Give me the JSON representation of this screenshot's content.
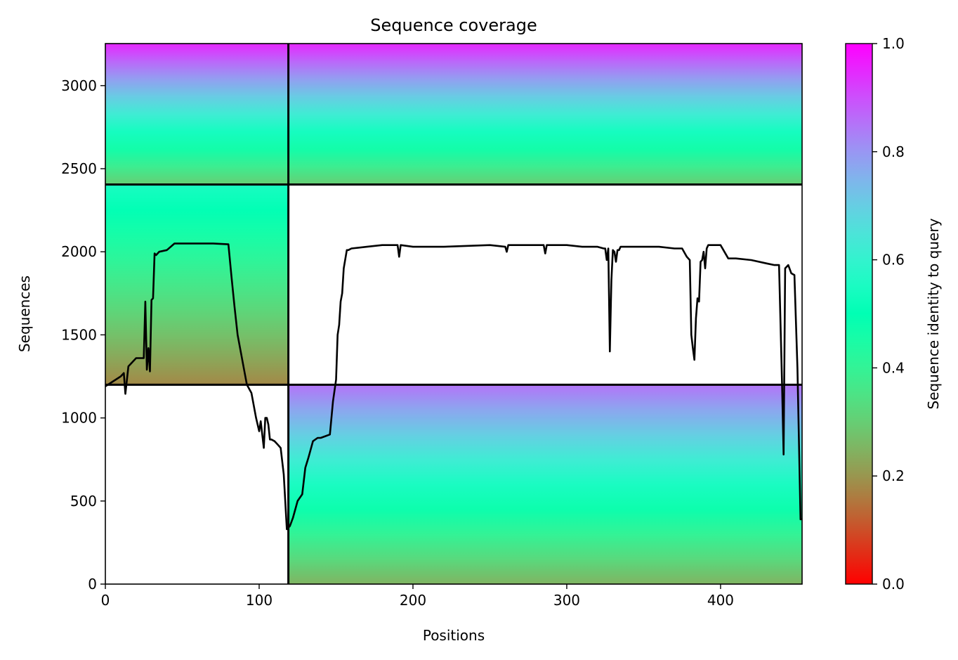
{
  "chart_data": {
    "type": "heatmap",
    "title": "Sequence coverage",
    "xlabel": "Positions",
    "ylabel": "Sequences",
    "xlim": [
      0,
      453
    ],
    "ylim": [
      0,
      3253
    ],
    "xticks": [
      0,
      100,
      200,
      300,
      400
    ],
    "yticks": [
      0,
      500,
      1000,
      1500,
      2000,
      2500,
      3000
    ],
    "colorbar": {
      "label": "Sequence identity to query",
      "range": [
        0,
        1
      ],
      "ticks": [
        0.0,
        0.2,
        0.4,
        0.6,
        0.8,
        1.0
      ],
      "colormap": "rainbow_r"
    },
    "chain_boundary_positions": [
      119
    ],
    "sequence_group_boundaries": [
      1200,
      2405
    ],
    "blocks": [
      {
        "name": "chain-A-block-1",
        "x_range": [
          0,
          119
        ],
        "y_range": [
          2405,
          3253
        ],
        "identity_top": 0.95,
        "identity_bottom": 0.3,
        "coverage_start": 0,
        "coverage_end": 119
      },
      {
        "name": "chain-A-block-2",
        "x_range": [
          0,
          119
        ],
        "y_range": [
          1200,
          2405
        ],
        "identity_top": 0.55,
        "identity_bottom": 0.18,
        "coverage_start": 0,
        "coverage_end": 119
      },
      {
        "name": "chain-B-block-1",
        "x_range": [
          119,
          453
        ],
        "y_range": [
          2405,
          3253
        ],
        "identity_top": 0.95,
        "identity_bottom": 0.3,
        "coverage_start": 119,
        "coverage_end": 453
      },
      {
        "name": "chain-B-block-3",
        "x_range": [
          119,
          453
        ],
        "y_range": [
          0,
          1200
        ],
        "identity_top": 0.85,
        "identity_bottom": 0.25,
        "coverage_start": 119,
        "coverage_end": 453
      }
    ],
    "coverage_line": {
      "x": [
        0,
        5,
        10,
        12,
        13,
        15,
        20,
        25,
        26,
        27,
        28,
        29,
        30,
        31,
        32,
        33,
        35,
        40,
        45,
        50,
        55,
        60,
        70,
        80,
        82,
        84,
        86,
        88,
        90,
        92,
        95,
        98,
        100,
        101,
        103,
        104,
        105,
        106,
        107,
        108,
        110,
        112,
        114,
        116,
        118,
        119,
        120,
        122,
        125,
        128,
        130,
        132,
        135,
        138,
        140,
        143,
        146,
        148,
        150,
        151,
        152,
        153,
        154,
        155,
        157,
        158,
        160,
        170,
        180,
        190,
        191,
        192,
        200,
        210,
        220,
        250,
        260,
        261,
        262,
        270,
        285,
        286,
        287,
        300,
        310,
        320,
        324,
        325,
        326,
        327,
        328,
        329,
        330,
        331,
        332,
        333,
        334,
        335,
        340,
        350,
        360,
        370,
        375,
        378,
        380,
        381,
        382,
        383,
        384,
        385,
        386,
        387,
        388,
        389,
        390,
        391,
        392,
        393,
        394,
        395,
        400,
        405,
        410,
        420,
        430,
        435,
        438,
        440,
        441,
        442,
        444,
        446,
        448,
        450,
        452,
        453
      ],
      "y": [
        1190,
        1220,
        1250,
        1270,
        1145,
        1310,
        1360,
        1360,
        1700,
        1290,
        1420,
        1280,
        1710,
        1720,
        1990,
        1980,
        2000,
        2010,
        2050,
        2050,
        2050,
        2050,
        2050,
        2045,
        1850,
        1670,
        1500,
        1400,
        1300,
        1200,
        1150,
        1000,
        920,
        980,
        820,
        1000,
        1000,
        960,
        870,
        870,
        860,
        840,
        820,
        660,
        330,
        340,
        350,
        400,
        500,
        540,
        700,
        760,
        860,
        880,
        880,
        890,
        900,
        1100,
        1230,
        1500,
        1560,
        1700,
        1750,
        1900,
        2010,
        2010,
        2020,
        2030,
        2040,
        2040,
        1970,
        2040,
        2030,
        2030,
        2030,
        2040,
        2030,
        2000,
        2040,
        2040,
        2040,
        1990,
        2040,
        2040,
        2030,
        2030,
        2020,
        2020,
        1950,
        2020,
        1400,
        1830,
        2010,
        2000,
        1940,
        2010,
        2010,
        2030,
        2030,
        2030,
        2030,
        2020,
        2020,
        1970,
        1950,
        1500,
        1420,
        1350,
        1600,
        1720,
        1700,
        1940,
        1950,
        2000,
        1900,
        2020,
        2040,
        2040,
        2040,
        2040,
        2040,
        1960,
        1960,
        1950,
        1930,
        1920,
        1920,
        1200,
        780,
        1900,
        1920,
        1870,
        1860,
        1300,
        390,
        390
      ]
    }
  }
}
